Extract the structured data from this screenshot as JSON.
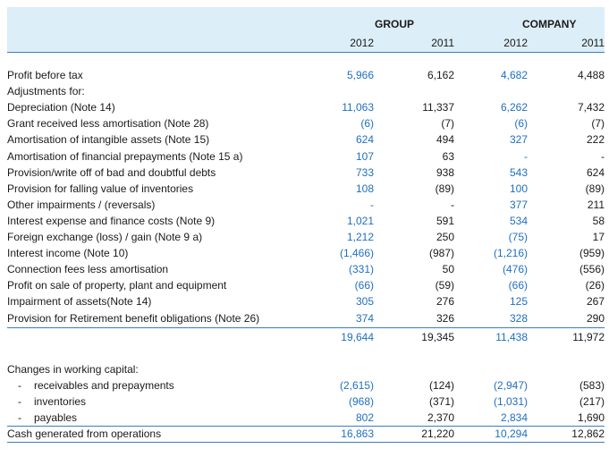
{
  "header": {
    "group_label": "GROUP",
    "company_label": "COMPANY",
    "years": [
      "2012",
      "2011",
      "2012",
      "2011"
    ]
  },
  "rows": [
    {
      "label": "Profit before tax",
      "values": [
        "5,966",
        "6,162",
        "4,682",
        "4,488"
      ]
    },
    {
      "label": "Adjustments for:",
      "values": [
        "",
        "",
        "",
        ""
      ]
    },
    {
      "label": "Depreciation (Note 14)",
      "values": [
        "11,063",
        "11,337",
        "6,262",
        "7,432"
      ]
    },
    {
      "label": "Grant received less amortisation (Note 28)",
      "values": [
        "(6)",
        "(7)",
        "(6)",
        "(7)"
      ]
    },
    {
      "label": "Amortisation of intangible assets (Note 15)",
      "values": [
        "624",
        "494",
        "327",
        "222"
      ]
    },
    {
      "label": "Amortisation of financial prepayments (Note 15 a)",
      "values": [
        "107",
        "63",
        "-",
        "-"
      ]
    },
    {
      "label": "Provision/write off of bad and doubtful debts",
      "values": [
        "733",
        "938",
        "543",
        "624"
      ]
    },
    {
      "label": "Provision for falling value of inventories",
      "values": [
        "108",
        "(89)",
        "100",
        "(89)"
      ]
    },
    {
      "label": "Other impairments / (reversals)",
      "values": [
        "-",
        "-",
        "377",
        "211"
      ]
    },
    {
      "label": "Interest expense and finance costs (Note 9)",
      "values": [
        "1,021",
        "591",
        "534",
        "58"
      ]
    },
    {
      "label": "Foreign exchange (loss) / gain (Note 9 a)",
      "values": [
        "1,212",
        "250",
        "(75)",
        "17"
      ]
    },
    {
      "label": "Interest income (Note 10)",
      "values": [
        "(1,466)",
        "(987)",
        "(1,216)",
        "(959)"
      ]
    },
    {
      "label": "Connection fees less amortisation",
      "values": [
        "(331)",
        "50",
        "(476)",
        "(556)"
      ]
    },
    {
      "label": "Profit on sale of property, plant and equipment",
      "values": [
        "(66)",
        "(59)",
        "(66)",
        "(26)"
      ]
    },
    {
      "label": "Impairment of assets(Note 14)",
      "values": [
        "305",
        "276",
        "125",
        "267"
      ]
    },
    {
      "label": "Provision for Retirement benefit obligations (Note 26)",
      "values": [
        "374",
        "326",
        "328",
        "290"
      ]
    }
  ],
  "subtotal": {
    "values": [
      "19,644",
      "19,345",
      "11,438",
      "11,972"
    ]
  },
  "working_capital": {
    "heading": "Changes in working capital:",
    "items": [
      {
        "dash": "-",
        "label": "receivables and prepayments",
        "values": [
          "(2,615)",
          "(124)",
          "(2,947)",
          "(583)"
        ]
      },
      {
        "dash": "-",
        "label": "inventories",
        "values": [
          "(968)",
          "(371)",
          "(1,031)",
          "(217)"
        ]
      },
      {
        "dash": "-",
        "label": "payables",
        "values": [
          "802",
          "2,370",
          "2,834",
          "1,690"
        ]
      }
    ]
  },
  "total": {
    "label": "Cash generated from operations",
    "values": [
      "16,863",
      "21,220",
      "10,294",
      "12,862"
    ]
  }
}
